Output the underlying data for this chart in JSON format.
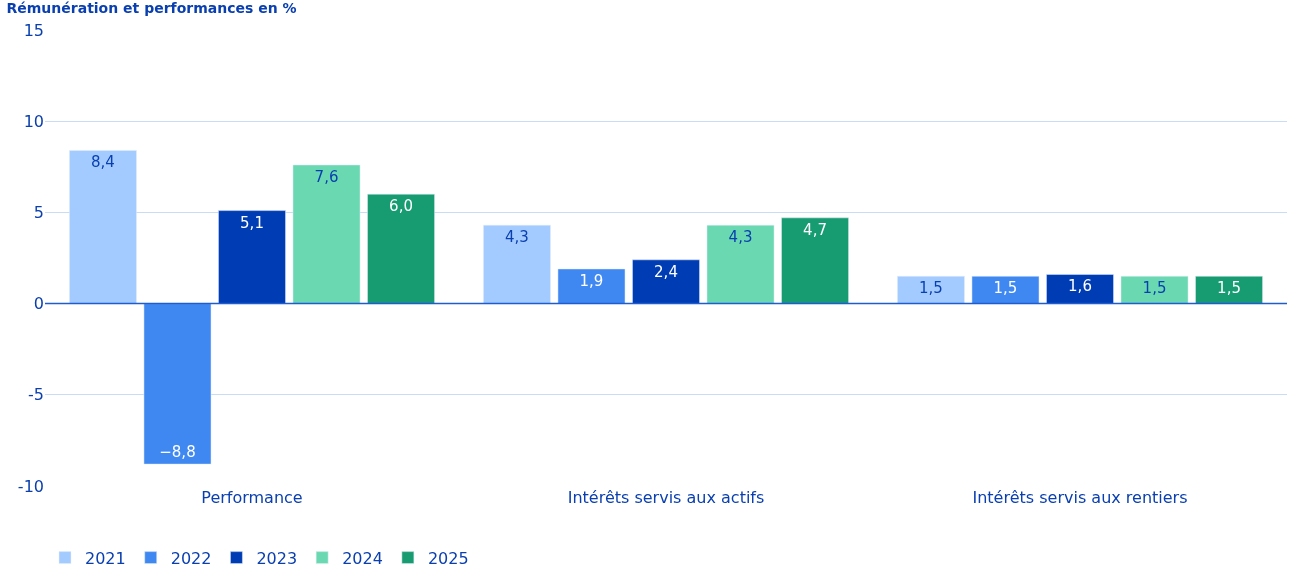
{
  "chart_data": {
    "type": "bar",
    "title": "Rémunération et performances en %",
    "categories": [
      "Performance",
      "Intérêts servis aux actifs",
      "Intérêts servis aux rentiers"
    ],
    "series": [
      {
        "name": "2021",
        "color": "#a3cbff",
        "values": [
          8.4,
          4.3,
          1.5
        ],
        "value_labels": [
          "8,4",
          "4,3",
          "1,5"
        ]
      },
      {
        "name": "2022",
        "color": "#3f88f2",
        "values": [
          -8.8,
          1.9,
          1.5
        ],
        "value_labels": [
          "−8,8",
          "1,9",
          "1,5"
        ]
      },
      {
        "name": "2023",
        "color": "#003db5",
        "values": [
          5.1,
          2.4,
          1.6
        ],
        "value_labels": [
          "5,1",
          "2,4",
          "1,6"
        ]
      },
      {
        "name": "2024",
        "color": "#6ad9b2",
        "values": [
          7.6,
          4.3,
          1.5
        ],
        "value_labels": [
          "7,6",
          "4,3",
          "1,5"
        ]
      },
      {
        "name": "2025",
        "color": "#179c72",
        "values": [
          6.0,
          4.7,
          1.5
        ],
        "value_labels": [
          "6,0",
          "4,7",
          "1,5"
        ]
      }
    ],
    "ref_lines": [
      {
        "axis": "y",
        "value": 0,
        "color": "#1f5cd0"
      }
    ],
    "ylim": [
      -10,
      15
    ],
    "yticks": [
      -10,
      -5,
      0,
      5,
      10,
      15
    ],
    "grid": "y",
    "legend": "bottom left"
  }
}
